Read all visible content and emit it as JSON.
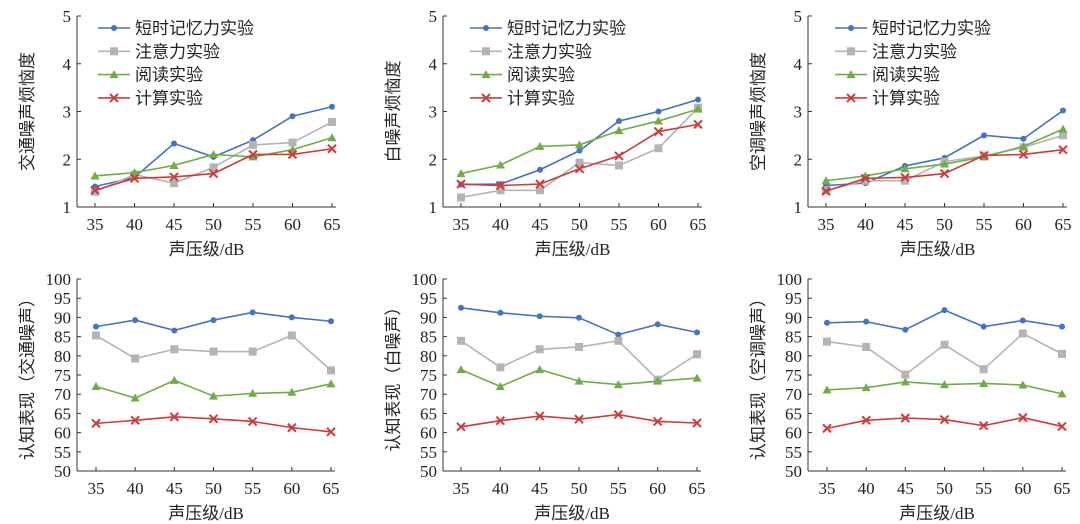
{
  "colors": {
    "短时记忆力实验": "#4472c4",
    "注意力实验": "#b4b4b4",
    "阅读实验": "#70ad47",
    "计算实验": "#d03a3a"
  },
  "chart_data": [
    {
      "type": "line",
      "title": "",
      "xlabel": "声压级/dB",
      "ylabel": "交通噪声烦恼度",
      "x": [
        35,
        40,
        45,
        50,
        55,
        60,
        65
      ],
      "ylim": [
        1,
        5
      ],
      "yticks": [
        1,
        2,
        3,
        4,
        5
      ],
      "legend": "top-left",
      "series": [
        {
          "name": "短时记忆力实验",
          "marker": "circle",
          "values": [
            1.43,
            1.62,
            2.33,
            2.05,
            2.4,
            2.9,
            3.1
          ]
        },
        {
          "name": "注意力实验",
          "marker": "square",
          "values": [
            1.32,
            1.68,
            1.5,
            1.83,
            2.3,
            2.35,
            2.78
          ]
        },
        {
          "name": "阅读实验",
          "marker": "triangle",
          "values": [
            1.65,
            1.72,
            1.87,
            2.1,
            2.05,
            2.2,
            2.45
          ]
        },
        {
          "name": "计算实验",
          "marker": "x",
          "values": [
            1.35,
            1.6,
            1.63,
            1.7,
            2.1,
            2.1,
            2.22
          ]
        }
      ]
    },
    {
      "type": "line",
      "title": "",
      "xlabel": "声压级/dB",
      "ylabel": "白噪声烦恼度",
      "x": [
        35,
        40,
        45,
        50,
        55,
        60,
        65
      ],
      "ylim": [
        1,
        5
      ],
      "yticks": [
        1,
        2,
        3,
        4,
        5
      ],
      "legend": "top-left",
      "series": [
        {
          "name": "短时记忆力实验",
          "marker": "circle",
          "values": [
            1.47,
            1.48,
            1.78,
            2.18,
            2.8,
            3.0,
            3.25
          ]
        },
        {
          "name": "注意力实验",
          "marker": "square",
          "values": [
            1.2,
            1.35,
            1.35,
            1.93,
            1.87,
            2.23,
            3.08
          ]
        },
        {
          "name": "阅读实验",
          "marker": "triangle",
          "values": [
            1.7,
            1.88,
            2.27,
            2.3,
            2.6,
            2.8,
            3.05
          ]
        },
        {
          "name": "计算实验",
          "marker": "x",
          "values": [
            1.48,
            1.45,
            1.48,
            1.8,
            2.07,
            2.58,
            2.73
          ]
        }
      ]
    },
    {
      "type": "line",
      "title": "",
      "xlabel": "声压级/dB",
      "ylabel": "空调噪声烦恼度",
      "x": [
        35,
        40,
        45,
        50,
        55,
        60,
        65
      ],
      "ylim": [
        1,
        5
      ],
      "yticks": [
        1,
        2,
        3,
        4,
        5
      ],
      "legend": "top-left",
      "series": [
        {
          "name": "短时记忆力实验",
          "marker": "circle",
          "values": [
            1.45,
            1.5,
            1.86,
            2.03,
            2.5,
            2.43,
            3.02
          ]
        },
        {
          "name": "注意力实验",
          "marker": "square",
          "values": [
            1.35,
            1.55,
            1.55,
            1.95,
            2.07,
            2.25,
            2.5
          ]
        },
        {
          "name": "阅读实验",
          "marker": "triangle",
          "values": [
            1.55,
            1.65,
            1.8,
            1.9,
            2.05,
            2.27,
            2.63
          ]
        },
        {
          "name": "计算实验",
          "marker": "x",
          "values": [
            1.33,
            1.6,
            1.62,
            1.7,
            2.08,
            2.1,
            2.2
          ]
        }
      ]
    },
    {
      "type": "line",
      "title": "",
      "xlabel": "声压级/dB",
      "ylabel": "认知表现（交通噪声）",
      "x": [
        35,
        40,
        45,
        50,
        55,
        60,
        65
      ],
      "ylim": [
        50,
        100
      ],
      "yticks": [
        50,
        55,
        60,
        65,
        70,
        75,
        80,
        85,
        90,
        95,
        100
      ],
      "series": [
        {
          "name": "短时记忆力实验",
          "marker": "circle",
          "values": [
            87.6,
            89.3,
            86.6,
            89.3,
            91.3,
            90.0,
            89.0
          ]
        },
        {
          "name": "注意力实验",
          "marker": "square",
          "values": [
            85.3,
            79.3,
            81.7,
            81.1,
            81.1,
            85.3,
            76.2
          ]
        },
        {
          "name": "阅读实验",
          "marker": "triangle",
          "values": [
            72.0,
            69.0,
            73.6,
            69.5,
            70.2,
            70.5,
            72.7
          ]
        },
        {
          "name": "计算实验",
          "marker": "x",
          "values": [
            62.4,
            63.2,
            64.1,
            63.6,
            62.9,
            61.3,
            60.2
          ]
        }
      ]
    },
    {
      "type": "line",
      "title": "",
      "xlabel": "声压级/dB",
      "ylabel": "认知表现（白噪声）",
      "x": [
        35,
        40,
        45,
        50,
        55,
        60,
        65
      ],
      "ylim": [
        50,
        100
      ],
      "yticks": [
        50,
        55,
        60,
        65,
        70,
        75,
        80,
        85,
        90,
        95,
        100
      ],
      "series": [
        {
          "name": "短时记忆力实验",
          "marker": "circle",
          "values": [
            92.5,
            91.2,
            90.3,
            89.9,
            85.5,
            88.2,
            86.1
          ]
        },
        {
          "name": "注意力实验",
          "marker": "square",
          "values": [
            83.9,
            77.0,
            81.7,
            82.3,
            83.9,
            73.8,
            80.4
          ]
        },
        {
          "name": "阅读实验",
          "marker": "triangle",
          "values": [
            76.4,
            72.0,
            76.4,
            73.4,
            72.5,
            73.4,
            74.2
          ]
        },
        {
          "name": "计算实验",
          "marker": "x",
          "values": [
            61.5,
            63.1,
            64.3,
            63.5,
            64.7,
            62.9,
            62.5
          ]
        }
      ]
    },
    {
      "type": "line",
      "title": "",
      "xlabel": "声压级/dB",
      "ylabel": "认知表现（空调噪声）",
      "x": [
        35,
        40,
        45,
        50,
        55,
        60,
        65
      ],
      "ylim": [
        50,
        100
      ],
      "yticks": [
        50,
        55,
        60,
        65,
        70,
        75,
        80,
        85,
        90,
        95,
        100
      ],
      "series": [
        {
          "name": "短时记忆力实验",
          "marker": "circle",
          "values": [
            88.6,
            88.9,
            86.8,
            91.9,
            87.6,
            89.2,
            87.6
          ]
        },
        {
          "name": "注意力实验",
          "marker": "square",
          "values": [
            83.7,
            82.3,
            75.1,
            82.9,
            76.5,
            85.8,
            80.5
          ]
        },
        {
          "name": "阅读实验",
          "marker": "triangle",
          "values": [
            71.1,
            71.7,
            73.2,
            72.5,
            72.8,
            72.4,
            70.1
          ]
        },
        {
          "name": "计算实验",
          "marker": "x",
          "values": [
            61.1,
            63.2,
            63.8,
            63.4,
            61.8,
            63.9,
            61.6
          ]
        }
      ]
    }
  ]
}
